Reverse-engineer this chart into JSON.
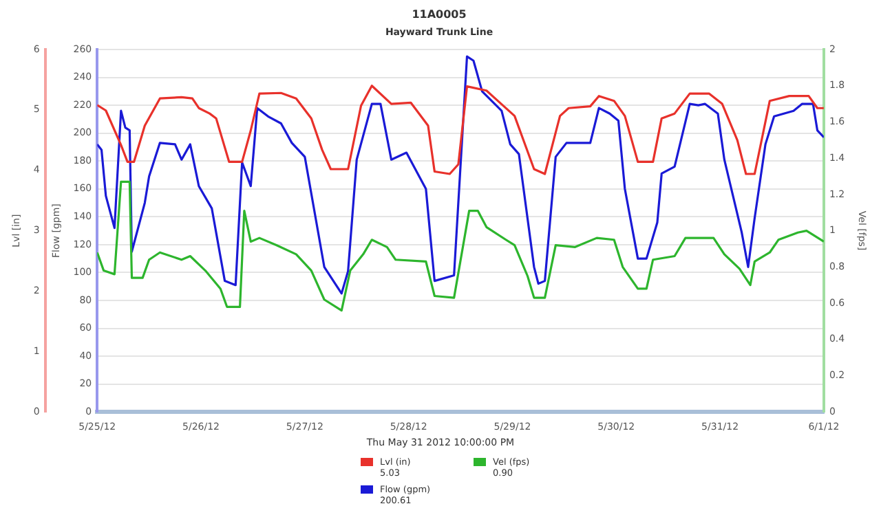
{
  "chart_data": {
    "type": "line",
    "title": "11A0005",
    "subtitle": "Hayward Trunk Line",
    "ylabel": "Flow [gpm]",
    "y2label": "Vel [fps]",
    "y3label": "Lvl [in]",
    "xlim": [
      "2012-05-25",
      "2012-06-01"
    ],
    "xticks": [
      {
        "value": "2012-05-25",
        "label": "5/25/12"
      },
      {
        "value": "2012-05-26",
        "label": "5/26/12"
      },
      {
        "value": "2012-05-27",
        "label": "5/27/12"
      },
      {
        "value": "2012-05-28",
        "label": "5/28/12"
      },
      {
        "value": "2012-05-29",
        "label": "5/29/12"
      },
      {
        "value": "2012-05-30",
        "label": "5/30/12"
      },
      {
        "value": "2012-05-31",
        "label": "5/31/12"
      },
      {
        "value": "2012-06-01",
        "label": "6/1/12"
      }
    ],
    "ylim": [
      0,
      260
    ],
    "yticks": [
      0,
      20,
      40,
      60,
      80,
      100,
      120,
      140,
      160,
      180,
      200,
      220,
      240,
      260
    ],
    "y2lim": [
      0,
      2
    ],
    "y2ticks": [
      0,
      0.2,
      0.4,
      0.6,
      0.8,
      1,
      1.2,
      1.4,
      1.6,
      1.8,
      2
    ],
    "y3lim": [
      0,
      6
    ],
    "y3ticks": [
      0,
      1,
      2,
      3,
      4,
      5,
      6
    ],
    "grid": "y",
    "legend": "bottom",
    "marker": "none",
    "annotations": [
      "Thu May 31 2012 10:00:00 PM",
      "5.03",
      "0.90",
      "200.61"
    ],
    "series": [
      {
        "name": "Lvl (in)",
        "color": "#e8312b",
        "axis": "y3",
        "x": [
          "2012-05-25T00:00",
          "2012-05-25T02:00",
          "2012-05-25T05:30",
          "2012-05-25T07:00",
          "2012-05-25T08:30",
          "2012-05-25T11:00",
          "2012-05-25T14:30",
          "2012-05-25T19:30",
          "2012-05-25T22:00",
          "2012-05-25T23:30",
          "2012-05-26T02:00",
          "2012-05-26T03:30",
          "2012-05-26T06:30",
          "2012-05-26T09:30",
          "2012-05-26T11:30",
          "2012-05-26T13:30",
          "2012-05-26T18:30",
          "2012-05-26T22:00",
          "2012-05-27T01:30",
          "2012-05-27T04:00",
          "2012-05-27T06:00",
          "2012-05-27T10:00",
          "2012-05-27T13:00",
          "2012-05-27T15:30",
          "2012-05-27T20:00",
          "2012-05-28T00:30",
          "2012-05-28T04:30",
          "2012-05-28T06:00",
          "2012-05-28T09:30",
          "2012-05-28T11:30",
          "2012-05-28T13:30",
          "2012-05-28T18:00",
          "2012-05-28T20:00",
          "2012-05-29T00:30",
          "2012-05-29T05:00",
          "2012-05-29T07:30",
          "2012-05-29T11:00",
          "2012-05-29T13:00",
          "2012-05-29T18:00",
          "2012-05-29T20:00",
          "2012-05-29T23:30",
          "2012-05-30T02:00",
          "2012-05-30T05:00",
          "2012-05-30T08:30",
          "2012-05-30T10:30",
          "2012-05-30T13:30",
          "2012-05-30T17:00",
          "2012-05-30T21:30",
          "2012-05-31T00:30",
          "2012-05-31T04:00",
          "2012-05-31T06:00",
          "2012-05-31T08:00",
          "2012-05-31T11:30",
          "2012-05-31T16:00",
          "2012-05-31T20:30",
          "2012-05-31T22:30",
          "2012-06-01T00:00"
        ],
        "values": [
          5.08,
          4.99,
          4.42,
          4.14,
          4.14,
          4.74,
          5.19,
          5.21,
          5.19,
          5.03,
          4.94,
          4.86,
          4.14,
          4.14,
          4.66,
          5.27,
          5.28,
          5.19,
          4.86,
          4.34,
          4.02,
          4.02,
          5.07,
          5.4,
          5.1,
          5.12,
          4.74,
          3.98,
          3.94,
          4.1,
          5.39,
          5.32,
          5.19,
          4.9,
          4.02,
          3.94,
          4.9,
          5.03,
          5.06,
          5.23,
          5.15,
          4.9,
          4.14,
          4.14,
          4.86,
          4.94,
          5.27,
          5.27,
          5.1,
          4.5,
          3.94,
          3.94,
          5.15,
          5.23,
          5.23,
          5.03,
          5.03
        ]
      },
      {
        "name": "Vel (fps)",
        "color": "#2db52d",
        "axis": "y2",
        "x": [
          "2012-05-25T00:00",
          "2012-05-25T01:30",
          "2012-05-25T04:00",
          "2012-05-25T05:30",
          "2012-05-25T07:30",
          "2012-05-25T08:00",
          "2012-05-25T10:30",
          "2012-05-25T12:00",
          "2012-05-25T14:30",
          "2012-05-25T19:30",
          "2012-05-25T21:30",
          "2012-05-26T01:00",
          "2012-05-26T04:30",
          "2012-05-26T06:00",
          "2012-05-26T09:00",
          "2012-05-26T10:00",
          "2012-05-26T11:30",
          "2012-05-26T13:30",
          "2012-05-26T17:30",
          "2012-05-26T22:00",
          "2012-05-27T01:30",
          "2012-05-27T04:30",
          "2012-05-27T08:30",
          "2012-05-27T10:30",
          "2012-05-27T13:30",
          "2012-05-27T15:30",
          "2012-05-27T19:00",
          "2012-05-27T21:00",
          "2012-05-28T04:00",
          "2012-05-28T06:00",
          "2012-05-28T10:30",
          "2012-05-28T14:00",
          "2012-05-28T16:00",
          "2012-05-28T18:00",
          "2012-05-28T22:30",
          "2012-05-29T00:30",
          "2012-05-29T03:30",
          "2012-05-29T05:00",
          "2012-05-29T07:30",
          "2012-05-29T10:00",
          "2012-05-29T14:30",
          "2012-05-29T19:30",
          "2012-05-29T23:30",
          "2012-05-30T01:30",
          "2012-05-30T05:00",
          "2012-05-30T07:00",
          "2012-05-30T08:30",
          "2012-05-30T13:30",
          "2012-05-30T16:00",
          "2012-05-30T22:30",
          "2012-05-31T01:00",
          "2012-05-31T04:30",
          "2012-05-31T07:00",
          "2012-05-31T08:00",
          "2012-05-31T11:30",
          "2012-05-31T13:30",
          "2012-05-31T18:00",
          "2012-05-31T20:00",
          "2012-06-01T00:00"
        ],
        "values": [
          0.88,
          0.78,
          0.76,
          1.27,
          1.27,
          0.74,
          0.74,
          0.84,
          0.88,
          0.84,
          0.86,
          0.78,
          0.68,
          0.58,
          0.58,
          1.11,
          0.94,
          0.96,
          0.92,
          0.87,
          0.78,
          0.62,
          0.56,
          0.78,
          0.87,
          0.95,
          0.91,
          0.84,
          0.83,
          0.64,
          0.63,
          1.11,
          1.11,
          1.02,
          0.95,
          0.92,
          0.75,
          0.63,
          0.63,
          0.92,
          0.91,
          0.96,
          0.95,
          0.8,
          0.68,
          0.68,
          0.84,
          0.86,
          0.96,
          0.96,
          0.87,
          0.79,
          0.7,
          0.83,
          0.88,
          0.95,
          0.99,
          1,
          0.94
        ]
      },
      {
        "name": "Flow (gpm)",
        "color": "#1a1ad6",
        "x": [
          "2012-05-25T00:00",
          "2012-05-25T01:00",
          "2012-05-25T02:00",
          "2012-05-25T04:00",
          "2012-05-25T05:30",
          "2012-05-25T06:30",
          "2012-05-25T07:30",
          "2012-05-25T08:00",
          "2012-05-25T11:00",
          "2012-05-25T12:00",
          "2012-05-25T14:30",
          "2012-05-25T18:00",
          "2012-05-25T19:30",
          "2012-05-25T21:30",
          "2012-05-25T23:30",
          "2012-05-26T02:30",
          "2012-05-26T05:30",
          "2012-05-26T08:00",
          "2012-05-26T09:30",
          "2012-05-26T11:30",
          "2012-05-26T13:00",
          "2012-05-26T15:30",
          "2012-05-26T18:30",
          "2012-05-26T21:00",
          "2012-05-27T00:00",
          "2012-05-27T04:30",
          "2012-05-27T08:30",
          "2012-05-27T10:00",
          "2012-05-27T12:00",
          "2012-05-27T15:30",
          "2012-05-27T17:30",
          "2012-05-27T20:00",
          "2012-05-27T23:30",
          "2012-05-28T04:00",
          "2012-05-28T06:00",
          "2012-05-28T10:30",
          "2012-05-28T13:30",
          "2012-05-28T15:00",
          "2012-05-28T17:00",
          "2012-05-28T21:30",
          "2012-05-28T23:30",
          "2012-05-29T01:30",
          "2012-05-29T05:00",
          "2012-05-29T06:00",
          "2012-05-29T07:30",
          "2012-05-29T10:00",
          "2012-05-29T12:30",
          "2012-05-29T18:00",
          "2012-05-29T20:00",
          "2012-05-29T22:30",
          "2012-05-30T00:30",
          "2012-05-30T02:00",
          "2012-05-30T05:00",
          "2012-05-30T07:00",
          "2012-05-30T09:30",
          "2012-05-30T10:30",
          "2012-05-30T13:30",
          "2012-05-30T17:00",
          "2012-05-30T19:00",
          "2012-05-30T20:30",
          "2012-05-30T23:30",
          "2012-05-31T01:00",
          "2012-05-31T05:00",
          "2012-05-31T06:30",
          "2012-05-31T08:00",
          "2012-05-31T10:30",
          "2012-05-31T12:30",
          "2012-05-31T17:00",
          "2012-05-31T19:00",
          "2012-05-31T21:30",
          "2012-05-31T22:30",
          "2012-06-01T00:00"
        ],
        "values": [
          192,
          188,
          155,
          132,
          216,
          204,
          202,
          115,
          150,
          169,
          193,
          192,
          181,
          192,
          162,
          146,
          94,
          91,
          179,
          162,
          218,
          212,
          207,
          193,
          183,
          104,
          85,
          101,
          181,
          221,
          221,
          181,
          186,
          160,
          94,
          98,
          255,
          252,
          230,
          216,
          192,
          185,
          104,
          92,
          94,
          183,
          193,
          193,
          218,
          214,
          209,
          160,
          110,
          110,
          136,
          171,
          176,
          221,
          220,
          221,
          214,
          181,
          129,
          104,
          139,
          192,
          212,
          216,
          221,
          221,
          202,
          197
        ]
      }
    ]
  }
}
